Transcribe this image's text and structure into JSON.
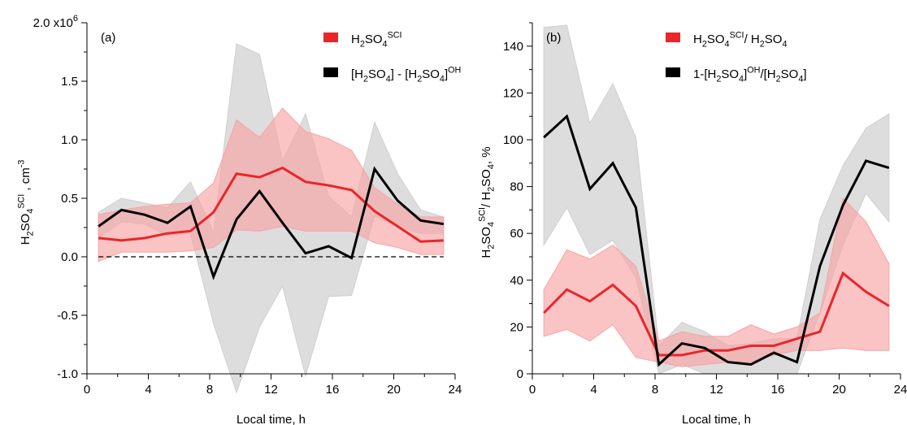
{
  "colors": {
    "red_line": "#e8262a",
    "red_band": "#f7a3a5",
    "black_line": "#000000",
    "grey_band": "#cfcfcf"
  },
  "chart_data": [
    {
      "type": "line",
      "panel_label": "(a)",
      "xlabel": "Local time, h",
      "ylabel": {
        "base": "H",
        "sub1": "2",
        "mid": "SO",
        "sub2": "4",
        "sup": "SCI",
        "tail": " , cm",
        "sup2": "-3"
      },
      "y_top_label": "2.0 x10",
      "y_top_exp": "6",
      "xlim": [
        0,
        24
      ],
      "ylim": [
        -1.0,
        2.0
      ],
      "x_ticks": [
        "0",
        "4",
        "8",
        "12",
        "16",
        "20",
        "24"
      ],
      "y_ticks": [
        "-1.0",
        "-0.5",
        "0.0",
        "0.5",
        "1.0",
        "1.5"
      ],
      "y_tick_values": [
        -1.0,
        -0.5,
        0.0,
        0.5,
        1.0,
        1.5
      ],
      "y_scale_note": "x10^6",
      "legend_position": "top-right",
      "reference_line": {
        "y": 0.0,
        "style": "dashed"
      },
      "x": [
        0.75,
        2.25,
        3.75,
        5.25,
        6.75,
        8.25,
        9.75,
        11.25,
        12.75,
        14.25,
        15.75,
        17.25,
        18.75,
        20.25,
        21.75,
        23.25
      ],
      "series": [
        {
          "legend": {
            "base": "H",
            "sub1": "2",
            "mid": "SO",
            "sub2": "4",
            "sup": "SCI"
          },
          "color_key": "red",
          "values": [
            0.16,
            0.14,
            0.16,
            0.2,
            0.22,
            0.38,
            0.71,
            0.68,
            0.76,
            0.64,
            0.61,
            0.57,
            0.39,
            0.26,
            0.13,
            0.14
          ],
          "band_upper": [
            0.36,
            0.4,
            0.43,
            0.45,
            0.46,
            0.63,
            1.17,
            1.02,
            1.27,
            1.07,
            1.01,
            0.91,
            0.59,
            0.45,
            0.34,
            0.34
          ],
          "band_lower": [
            -0.04,
            0.04,
            0.04,
            0.04,
            0.05,
            0.08,
            0.23,
            0.22,
            0.26,
            0.22,
            0.22,
            0.22,
            0.12,
            0.08,
            0.02,
            0.02
          ]
        },
        {
          "legend": {
            "t1": "[H",
            "sub1": "2",
            "t2": "SO",
            "sub2": "4",
            "t3": "] - [H",
            "sub3": "2",
            "t4": "SO",
            "sub4": "4",
            "t5": "]",
            "sup": "OH"
          },
          "color_key": "black",
          "values": [
            0.26,
            0.4,
            0.36,
            0.29,
            0.43,
            -0.17,
            0.32,
            0.56,
            0.29,
            0.03,
            0.09,
            -0.01,
            0.75,
            0.48,
            0.31,
            0.28
          ],
          "band_upper": [
            0.38,
            0.5,
            0.46,
            0.42,
            0.64,
            0.21,
            1.82,
            1.73,
            0.82,
            1.22,
            0.52,
            0.34,
            1.15,
            0.71,
            0.4,
            0.34
          ],
          "band_lower": [
            0.16,
            0.3,
            0.28,
            0.18,
            0.2,
            -0.57,
            -1.16,
            -0.6,
            -0.25,
            -1.02,
            -0.34,
            -0.33,
            0.35,
            0.26,
            0.2,
            0.2
          ]
        }
      ]
    },
    {
      "type": "line",
      "panel_label": "(b)",
      "xlabel": "Local time, h",
      "ylabel": {
        "base": "H",
        "sub1": "2",
        "mid": "SO",
        "sub2": "4",
        "sup": "SCI",
        "t2": "/ H",
        "sub3": "2",
        "t3": "SO",
        "sub4": "4",
        "tail": ", %"
      },
      "xlim": [
        0,
        24
      ],
      "ylim": [
        0,
        150
      ],
      "x_ticks": [
        "0",
        "4",
        "8",
        "12",
        "16",
        "20",
        "24"
      ],
      "y_ticks": [
        "0",
        "20",
        "40",
        "60",
        "80",
        "100",
        "120",
        "140"
      ],
      "y_tick_values": [
        0,
        20,
        40,
        60,
        80,
        100,
        120,
        140
      ],
      "legend_position": "top-right",
      "x": [
        0.75,
        2.25,
        3.75,
        5.25,
        6.75,
        8.25,
        9.75,
        11.25,
        12.75,
        14.25,
        15.75,
        17.25,
        18.75,
        20.25,
        21.75,
        23.25
      ],
      "series": [
        {
          "legend": {
            "base": "H",
            "sub1": "2",
            "mid": "SO",
            "sub2": "4",
            "sup": "SCI",
            "t2": "/ H",
            "sub3": "2",
            "t3": "SO",
            "sub4": "4"
          },
          "color_key": "red",
          "values": [
            26,
            36,
            31,
            38,
            29,
            8,
            8,
            10,
            10,
            12,
            12,
            15,
            18,
            43,
            35,
            29
          ],
          "band_upper": [
            36,
            53,
            49,
            55,
            46,
            14,
            18,
            16,
            16,
            21,
            17,
            20,
            26,
            75,
            65,
            47
          ],
          "band_lower": [
            16,
            19,
            14,
            21,
            7,
            5,
            3,
            4,
            5,
            5,
            8,
            10,
            10,
            11,
            10,
            10
          ]
        },
        {
          "legend": {
            "t1": "1-[H",
            "sub1": "2",
            "t2": "SO",
            "sub2": "4",
            "t3": "]",
            "sup": "OH",
            "t4": "/[H",
            "sub3": "2",
            "t5": "SO",
            "sub4": "4",
            "t6": "]"
          },
          "color_key": "black",
          "values": [
            101,
            110,
            79,
            90,
            71,
            4,
            13,
            11,
            5,
            4,
            9,
            5,
            46,
            72,
            91,
            88
          ],
          "band_upper": [
            148,
            149,
            107,
            124,
            101,
            12,
            22,
            18,
            12,
            13,
            15,
            15,
            66,
            89,
            105,
            111
          ],
          "band_lower": [
            55,
            71,
            51,
            57,
            41,
            0,
            4,
            0,
            0,
            0,
            0,
            0,
            26,
            55,
            77,
            65
          ]
        }
      ]
    }
  ]
}
